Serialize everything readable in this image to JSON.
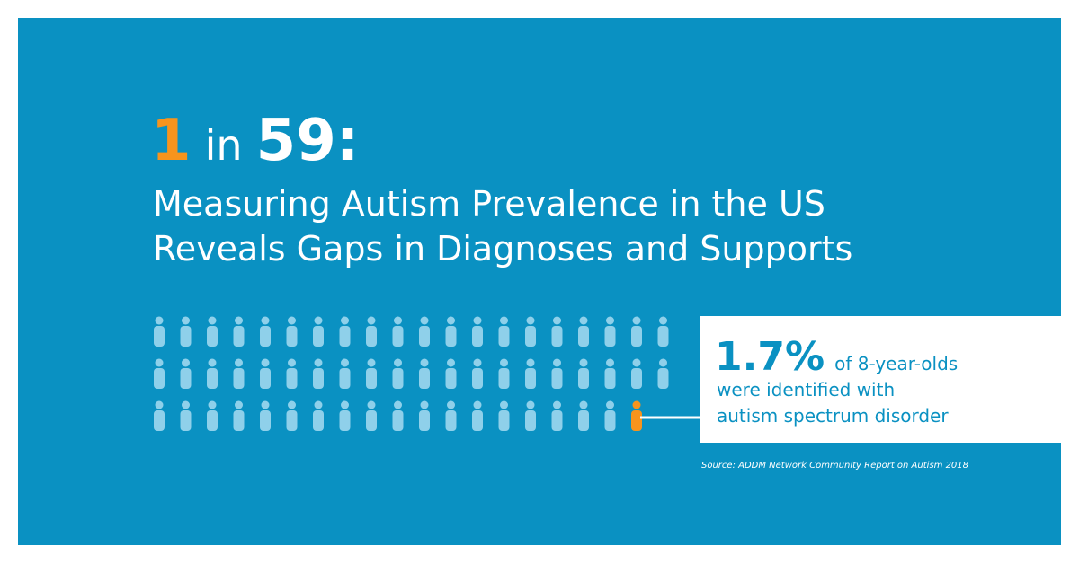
{
  "headline": {
    "number": "1",
    "connector": "in",
    "total": "59:"
  },
  "subtitle": [
    "Measuring Autism Prevalence in the US",
    "Reveals Gaps in Diagnoses and Supports"
  ],
  "callout": {
    "stat": "1.7%",
    "lines": [
      "of 8-year-olds",
      "were identified with",
      "autism spectrum disorder"
    ]
  },
  "source": "Source: ADDM Network Community Report on Autism 2018"
}
